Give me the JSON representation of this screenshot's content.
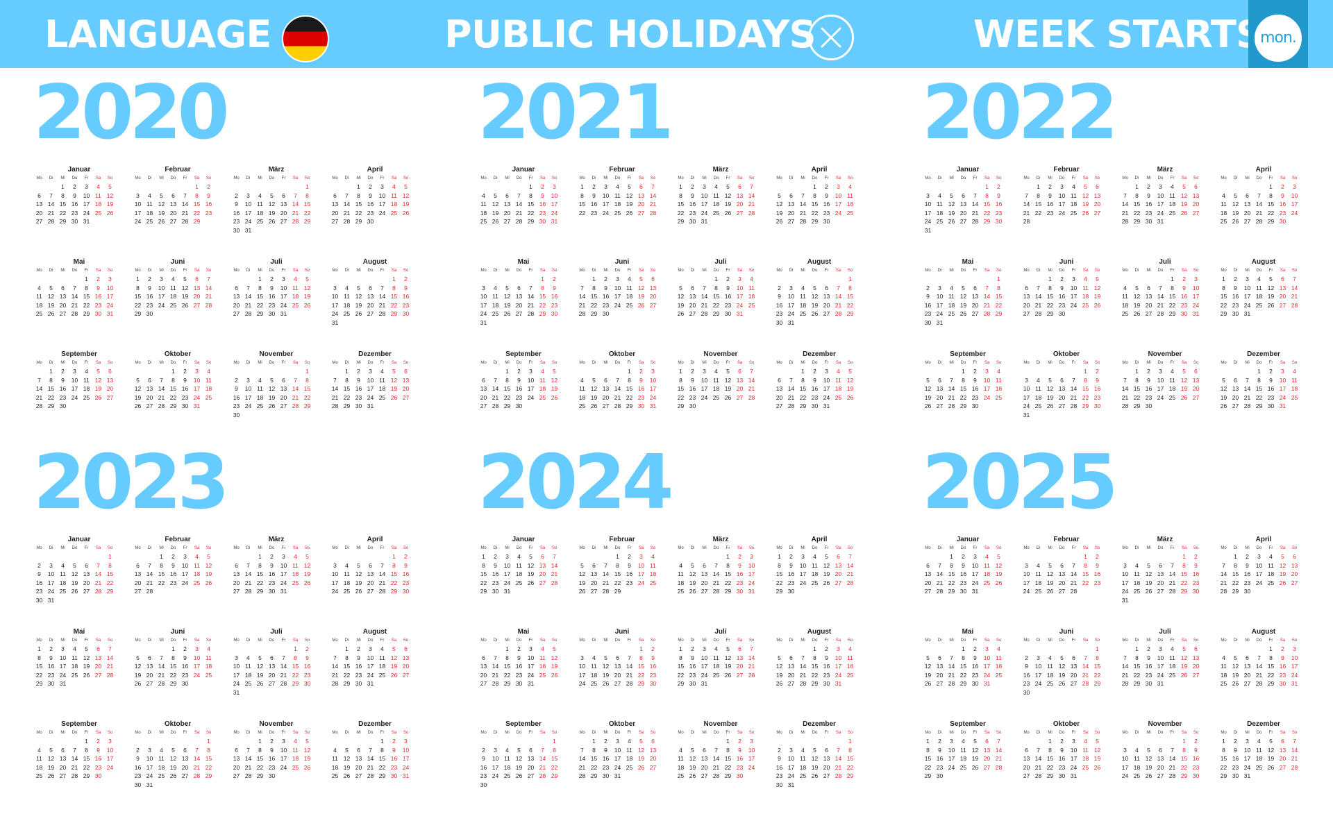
{
  "header": {
    "language_label": "LANGUAGE",
    "holidays_label": "PUBLIC HOLIDAYS",
    "week_label": "WEEK STARTS",
    "week_badge": "mon.",
    "flag_icon": "germany-flag-icon",
    "holidays_icon": "close-icon"
  },
  "colors": {
    "accent": "#66ccff",
    "tab": "#2299cc",
    "weekend": "#e0282e",
    "text": "#222222"
  },
  "calendar": {
    "weekdays": [
      "Mo",
      "Di",
      "Mi",
      "Do",
      "Fr",
      "Sa",
      "So"
    ],
    "month_names": [
      "Januar",
      "Februar",
      "März",
      "April",
      "Mai",
      "Juni",
      "Juli",
      "August",
      "September",
      "Oktober",
      "November",
      "Dezember"
    ],
    "weekend_days": [
      "Sa",
      "So"
    ],
    "years": [
      2020,
      2021,
      2022,
      2023,
      2024,
      2025
    ]
  }
}
